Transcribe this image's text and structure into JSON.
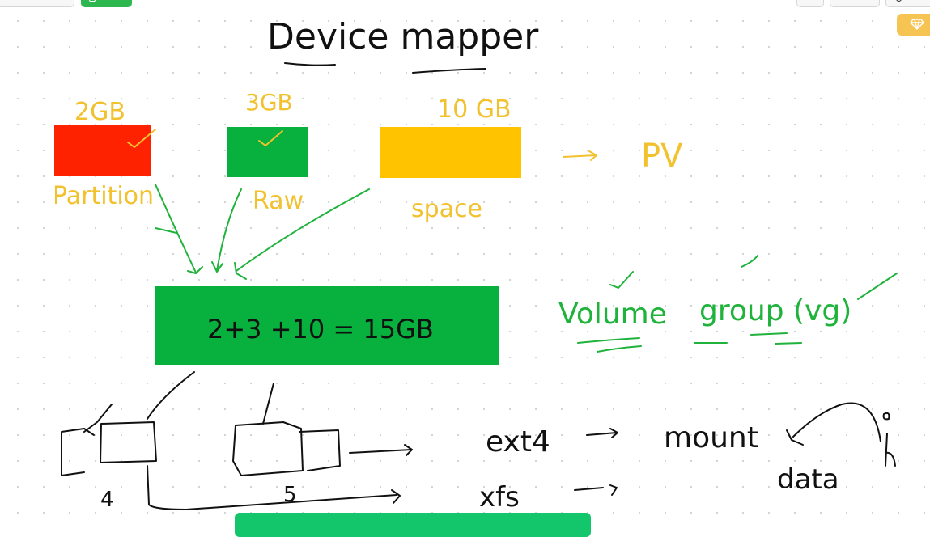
{
  "toolbar": {
    "premium_icon": "diamond-icon"
  },
  "board": {
    "title": "Device mapper",
    "sizes": [
      "2GB",
      "3GB",
      "10 GB"
    ],
    "block_labels": [
      "Partition",
      "Raw",
      "space"
    ],
    "pv_label": "PV",
    "vg_equation": "2+3  +10  = 15GB",
    "volume_word": "Volume",
    "group_word": "group (vg)",
    "lv_numbers": [
      "4",
      "5"
    ],
    "fs_ext4": "ext4",
    "fs_xfs": "xfs",
    "mount_word": "mount",
    "data_word": "data",
    "colors": {
      "partition": "#ff2200",
      "raw": "#08b13e",
      "space": "#ffc300",
      "volume_group": "#08b13e",
      "yellow_ink": "#f2c12e",
      "green_ink": "#1fb33c"
    }
  }
}
